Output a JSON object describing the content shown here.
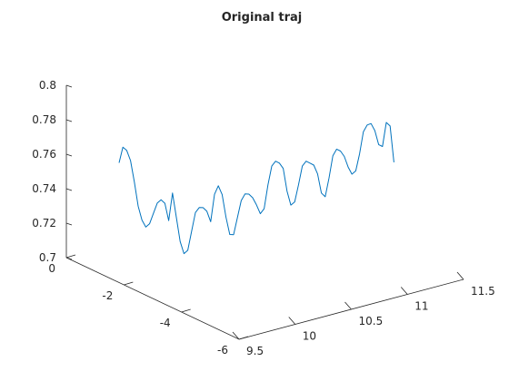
{
  "chart_data": {
    "type": "line",
    "projection": "3d",
    "title": "Original traj",
    "grid": false,
    "axes": {
      "x": {
        "ticks": [
          "9.5",
          "10",
          "10.5",
          "11",
          "11.5"
        ],
        "values": [
          9.5,
          10,
          10.5,
          11,
          11.5
        ]
      },
      "y": {
        "ticks": [
          "0",
          "-2",
          "-4",
          "-6"
        ],
        "values": [
          0,
          -2,
          -4,
          -6
        ]
      },
      "z": {
        "ticks": [
          "0.7",
          "0.72",
          "0.74",
          "0.76",
          "0.78",
          "0.8"
        ],
        "values": [
          0.7,
          0.72,
          0.74,
          0.76,
          0.78,
          0.8
        ]
      }
    },
    "series": [
      {
        "color": "#0072BD",
        "points": [
          [
            0.0,
            0.755
          ],
          [
            0.004,
            0.764
          ],
          [
            0.009,
            0.762
          ],
          [
            0.014,
            0.756
          ],
          [
            -0.003,
            0.744
          ],
          [
            -0.006,
            0.73
          ],
          [
            -0.01,
            0.722
          ],
          [
            -0.012,
            0.718
          ],
          [
            -0.014,
            0.72
          ],
          [
            -0.016,
            0.726
          ],
          [
            -0.018,
            0.732
          ],
          [
            -0.02,
            0.734
          ],
          [
            -0.022,
            0.732
          ],
          [
            -0.024,
            0.722
          ],
          [
            -0.026,
            0.738
          ],
          [
            -0.028,
            0.724
          ],
          [
            -0.03,
            0.71
          ],
          [
            -0.032,
            0.703
          ],
          [
            -0.034,
            0.705
          ],
          [
            -0.036,
            0.716
          ],
          [
            -0.04,
            0.727
          ],
          [
            -0.044,
            0.73
          ],
          [
            -0.048,
            0.73
          ],
          [
            -0.052,
            0.728
          ],
          [
            -0.056,
            0.722
          ],
          [
            -0.06,
            0.738
          ],
          [
            -0.062,
            0.743
          ],
          [
            -0.066,
            0.738
          ],
          [
            -0.07,
            0.725
          ],
          [
            -0.075,
            0.715
          ],
          [
            -0.08,
            0.715
          ],
          [
            -0.085,
            0.725
          ],
          [
            -0.09,
            0.735
          ],
          [
            -0.096,
            0.739
          ],
          [
            -0.102,
            0.739
          ],
          [
            -0.108,
            0.737
          ],
          [
            -0.114,
            0.733
          ],
          [
            -0.12,
            0.728
          ],
          [
            -0.126,
            0.731
          ],
          [
            -0.132,
            0.745
          ],
          [
            -0.138,
            0.756
          ],
          [
            -0.144,
            0.759
          ],
          [
            -0.15,
            0.758
          ],
          [
            -0.156,
            0.755
          ],
          [
            -0.162,
            0.742
          ],
          [
            -0.168,
            0.734
          ],
          [
            -0.174,
            0.736
          ],
          [
            -0.18,
            0.746
          ],
          [
            -0.186,
            0.757
          ],
          [
            -0.192,
            0.76
          ],
          [
            -0.198,
            0.759
          ],
          [
            -0.204,
            0.758
          ],
          [
            -0.21,
            0.753
          ],
          [
            -0.216,
            0.742
          ],
          [
            -0.222,
            0.74
          ],
          [
            -0.228,
            0.751
          ],
          [
            -0.234,
            0.764
          ],
          [
            -0.24,
            0.768
          ],
          [
            -0.246,
            0.767
          ],
          [
            -0.252,
            0.764
          ],
          [
            -0.258,
            0.758
          ],
          [
            -0.264,
            0.754
          ],
          [
            -0.27,
            0.756
          ],
          [
            -0.276,
            0.766
          ],
          [
            -0.282,
            0.779
          ],
          [
            -0.288,
            0.783
          ],
          [
            -0.294,
            0.784
          ],
          [
            -0.3,
            0.78
          ],
          [
            -0.306,
            0.772
          ],
          [
            -0.31,
            0.771
          ],
          [
            -0.313,
            0.785
          ],
          [
            -0.315,
            0.783
          ],
          [
            -0.318,
            0.762
          ]
        ]
      }
    ]
  }
}
